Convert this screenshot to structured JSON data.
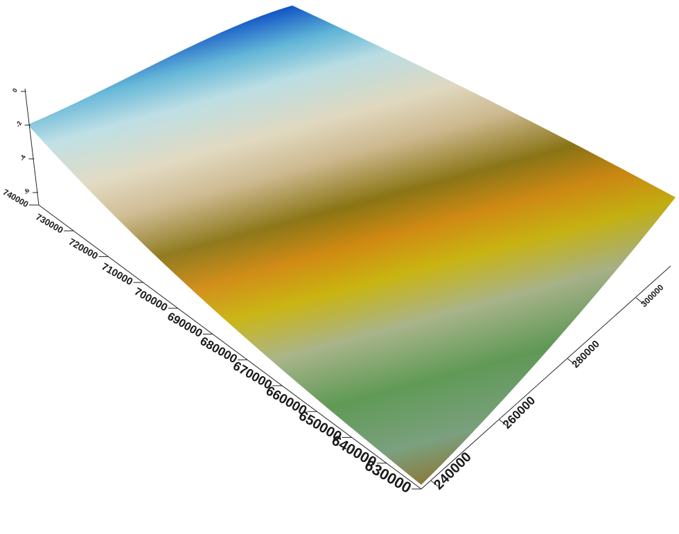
{
  "chart_data": {
    "type": "surface-3d",
    "title": "",
    "xlabel": "",
    "ylabel": "",
    "zlabel": "",
    "x_axis": {
      "ticks": [
        240000,
        260000,
        280000,
        300000
      ],
      "tick_labels": [
        "240000",
        "260000",
        "280000",
        "300000"
      ]
    },
    "y_axis": {
      "ticks": [
        630000,
        640000,
        650000,
        660000,
        670000,
        680000,
        690000,
        700000,
        710000,
        720000,
        730000,
        740000
      ],
      "tick_labels": [
        "630000",
        "640000",
        "650000",
        "660000",
        "670000",
        "680000",
        "690000",
        "700000",
        "710000",
        "720000",
        "730000",
        "740000"
      ]
    },
    "z_axis": {
      "tick_labels": [
        "-6",
        "-4",
        "-2",
        "0"
      ]
    },
    "colormap": [
      {
        "stop": 0.0,
        "color": "#8a7a3a"
      },
      {
        "stop": 0.08,
        "color": "#7aa07e"
      },
      {
        "stop": 0.2,
        "color": "#5f9a55"
      },
      {
        "stop": 0.32,
        "color": "#a9b48a"
      },
      {
        "stop": 0.42,
        "color": "#c9b410"
      },
      {
        "stop": 0.5,
        "color": "#d08a12"
      },
      {
        "stop": 0.58,
        "color": "#8a7414"
      },
      {
        "stop": 0.68,
        "color": "#cdb98f"
      },
      {
        "stop": 0.76,
        "color": "#e0d8bf"
      },
      {
        "stop": 0.86,
        "color": "#b9dde3"
      },
      {
        "stop": 0.93,
        "color": "#5cb3d6"
      },
      {
        "stop": 1.0,
        "color": "#0a4fc4"
      }
    ]
  }
}
